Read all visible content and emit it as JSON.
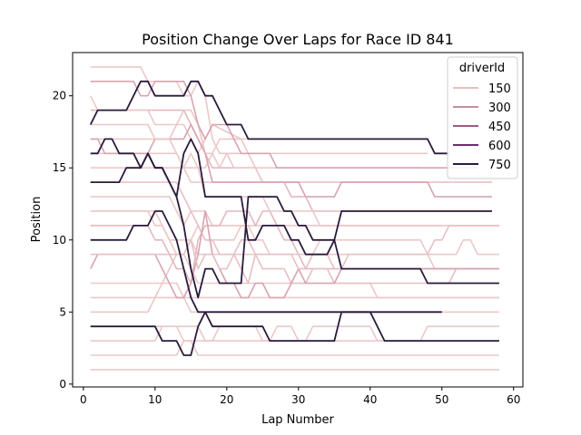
{
  "chart_data": {
    "type": "line",
    "title": "Position Change Over Laps for Race ID 841",
    "xlabel": "Lap Number",
    "ylabel": "Position",
    "xlim": [
      -1.5,
      61.3
    ],
    "ylim": [
      -0.2,
      23.0
    ],
    "xticks": [
      0,
      10,
      20,
      30,
      40,
      50,
      60
    ],
    "yticks": [
      0,
      5,
      10,
      15,
      20
    ],
    "grid": false,
    "legend": {
      "title": "driverId",
      "placement": "upper-right",
      "entries": [
        {
          "label": "150",
          "color": "#e8bfc1"
        },
        {
          "label": "300",
          "color": "#c48e9e"
        },
        {
          "label": "450",
          "color": "#9c5a89"
        },
        {
          "label": "600",
          "color": "#6a2e6f"
        },
        {
          "label": "750",
          "color": "#2b1b3c"
        }
      ]
    },
    "series": [
      {
        "color": "#ecc8c8",
        "x": [
          1,
          9,
          10,
          11,
          12,
          58
        ],
        "y": [
          1,
          1,
          1,
          1,
          1,
          1
        ]
      },
      {
        "color": "#ecc8c8",
        "x": [
          1,
          10,
          11,
          12,
          13,
          14,
          15,
          16,
          17,
          58
        ],
        "y": [
          2,
          2,
          2,
          2,
          2,
          3,
          3,
          2,
          2,
          2
        ]
      },
      {
        "color": "#ecc8c8",
        "x": [
          1,
          10,
          11,
          12,
          13,
          14,
          58
        ],
        "y": [
          3,
          3,
          4,
          4,
          4,
          3,
          3
        ]
      },
      {
        "color": "#ecc8c8",
        "x": [
          1,
          9,
          10,
          11,
          14,
          15,
          16,
          17,
          58
        ],
        "y": [
          5,
          5,
          6,
          6,
          6,
          5,
          5,
          5,
          5
        ]
      },
      {
        "color": "#ecc8c8",
        "x": [
          1,
          10,
          11,
          12,
          13,
          14,
          15,
          58
        ],
        "y": [
          6,
          6,
          7,
          7,
          7,
          6,
          6,
          6
        ]
      },
      {
        "color": "#ecc8c8",
        "x": [
          1,
          11,
          12,
          13,
          14,
          15,
          16,
          40,
          41,
          58
        ],
        "y": [
          7,
          7,
          8,
          9,
          9,
          8,
          7,
          7,
          6,
          6
        ]
      },
      {
        "color": "#ecc8c8",
        "x": [
          1,
          10,
          11,
          12,
          15,
          16,
          48,
          49,
          58
        ],
        "y": [
          12,
          12,
          11,
          10,
          10,
          9,
          9,
          8,
          8
        ]
      },
      {
        "color": "#ecc8c8",
        "x": [
          1,
          12,
          13,
          14,
          15,
          17,
          18,
          58
        ],
        "y": [
          13,
          13,
          12,
          11,
          12,
          12,
          11,
          11
        ]
      },
      {
        "color": "#ecc8c8",
        "x": [
          1,
          13,
          14,
          15,
          17,
          57
        ],
        "y": [
          16,
          16,
          15,
          14,
          14,
          14
        ]
      },
      {
        "color": "#e4b8bf",
        "x": [
          1,
          14,
          15,
          16,
          17,
          18,
          24,
          25,
          28,
          29,
          31,
          32,
          57
        ],
        "y": [
          19,
          19,
          18,
          17,
          16,
          15,
          15,
          14,
          14,
          13,
          13,
          12,
          12
        ]
      },
      {
        "color": "#ecc8c8",
        "x": [
          1,
          12,
          13,
          14,
          15,
          16,
          17,
          18,
          19,
          20,
          48
        ],
        "y": [
          17,
          17,
          18,
          19,
          19,
          18,
          16,
          16,
          17,
          17,
          17
        ]
      },
      {
        "color": "#ecc8c8",
        "x": [
          1,
          17,
          18,
          19,
          20,
          48
        ],
        "y": [
          15,
          15,
          16,
          15,
          16,
          16
        ]
      },
      {
        "color": "#ecc8c8",
        "x": [
          1,
          16,
          17,
          18,
          19,
          20,
          24,
          25,
          26,
          27,
          29,
          30,
          31,
          32,
          33,
          40,
          41,
          42,
          44,
          45,
          47,
          48,
          49,
          58
        ],
        "y": [
          4,
          4,
          3,
          3,
          4,
          4,
          4,
          3,
          3,
          4,
          4,
          3,
          3,
          4,
          4,
          4,
          3,
          3,
          3,
          3,
          3,
          4,
          4,
          4
        ]
      },
      {
        "color": "#e4b8bf",
        "x": [
          1,
          9,
          10,
          11,
          12,
          13,
          14,
          15,
          16,
          17,
          19,
          20,
          23,
          24,
          25,
          26,
          27,
          28,
          29,
          30,
          31,
          32,
          48,
          49,
          55
        ],
        "y": [
          11,
          11,
          10,
          10,
          9,
          8,
          8,
          7,
          10,
          11,
          11,
          12,
          12,
          11,
          12,
          12,
          11,
          10,
          10,
          9,
          8,
          8,
          8,
          8,
          8
        ]
      },
      {
        "color": "#ecc8c8",
        "x": [
          1,
          9,
          10,
          11,
          12,
          13,
          14,
          15,
          16,
          17,
          21,
          22,
          23,
          24,
          25,
          26,
          27,
          32,
          33,
          47,
          48,
          52,
          53,
          54,
          55,
          58
        ],
        "y": [
          12,
          12,
          11,
          11,
          10,
          9,
          9,
          10,
          11,
          10,
          10,
          11,
          11,
          10,
          10,
          9,
          9,
          9,
          10,
          10,
          9,
          9,
          10,
          10,
          9,
          9
        ]
      },
      {
        "color": "#e8c0c5",
        "x": [
          1,
          13,
          14,
          15,
          16,
          17,
          18,
          19,
          21,
          22,
          23,
          24,
          25,
          26,
          28,
          29,
          31,
          32,
          33,
          34,
          35,
          36,
          48,
          49,
          51,
          52,
          53,
          54,
          57
        ],
        "y": [
          14,
          14,
          13,
          12,
          11,
          10,
          10,
          9,
          9,
          10,
          10,
          9,
          8,
          8,
          8,
          7,
          7,
          8,
          8,
          8,
          7,
          7,
          7,
          7,
          7,
          8,
          8,
          8,
          8
        ]
      },
      {
        "color": "#d8a4b0",
        "x": [
          1,
          2,
          3,
          9,
          10,
          11,
          12,
          13,
          14,
          15,
          16,
          17,
          18,
          19,
          20,
          21,
          22,
          23,
          24,
          25,
          26,
          28,
          29,
          30,
          31,
          35,
          36,
          58
        ],
        "y": [
          8,
          9,
          9,
          9,
          9,
          8,
          7,
          6,
          6,
          7,
          9,
          12,
          9,
          8,
          7,
          7,
          6,
          6,
          7,
          7,
          6,
          6,
          7,
          8,
          7,
          7,
          8,
          8
        ]
      },
      {
        "color": "#e8c0c5",
        "x": [
          1,
          14,
          15,
          16,
          17,
          18,
          19,
          20,
          21,
          22,
          23,
          24,
          29,
          30,
          31,
          32,
          33,
          34,
          35,
          36,
          37,
          38,
          48,
          49,
          50,
          51,
          52,
          58
        ],
        "y": [
          9,
          9,
          10,
          8,
          9,
          9,
          8,
          8,
          9,
          8,
          7,
          9,
          9,
          8,
          8,
          9,
          9,
          9,
          8,
          8,
          9,
          9,
          9,
          10,
          10,
          11,
          11,
          11
        ]
      },
      {
        "color": "#ecc8c8",
        "x": [
          1,
          2,
          3,
          9,
          10,
          11,
          12,
          13,
          14,
          15,
          16,
          17,
          18,
          22,
          23,
          24,
          25,
          26,
          27,
          28,
          29,
          30,
          31,
          32,
          33,
          34,
          35,
          36,
          57
        ],
        "y": [
          20,
          19,
          19,
          19,
          18,
          18,
          18,
          18,
          18,
          17,
          16,
          17,
          18,
          17,
          16,
          15,
          14,
          14,
          14,
          14,
          14,
          14,
          14,
          14,
          14,
          14,
          14,
          14,
          14
        ]
      },
      {
        "color": "#ecc8c8",
        "x": [
          1,
          8,
          9,
          10,
          12,
          13,
          14,
          15,
          16,
          17,
          18,
          19,
          20,
          21,
          22,
          47
        ],
        "y": [
          22,
          22,
          21,
          21,
          21,
          21,
          20,
          20,
          21,
          20,
          17,
          16,
          16,
          15,
          15,
          15
        ]
      },
      {
        "color": "#d8a4b0",
        "x": [
          1,
          2,
          3,
          4,
          5,
          6,
          7,
          8,
          9,
          10,
          11,
          14,
          15,
          16,
          17,
          18,
          19,
          20,
          23,
          24,
          25,
          26,
          29,
          30,
          31,
          32,
          33,
          34,
          35,
          36,
          48,
          49,
          57
        ],
        "y": [
          17,
          17,
          16,
          16,
          16,
          16,
          16,
          16,
          16,
          17,
          17,
          17,
          18,
          17,
          16,
          14,
          14,
          14,
          14,
          14,
          14,
          14,
          14,
          14,
          13,
          13,
          13,
          13,
          13,
          14,
          14,
          13,
          13
        ]
      },
      {
        "color": "#d8a4b0",
        "x": [
          1,
          7,
          8,
          9,
          10,
          14,
          15,
          16,
          17,
          18,
          19,
          20,
          21,
          22,
          23,
          24,
          25,
          26,
          27,
          28,
          29,
          30,
          31,
          32,
          33,
          34,
          35,
          36,
          37,
          38,
          48,
          49,
          51,
          52,
          53,
          54,
          55
        ],
        "y": [
          21,
          21,
          20,
          20,
          21,
          21,
          20,
          18,
          17,
          18,
          18,
          18,
          17,
          16,
          16,
          16,
          16,
          16,
          15,
          15,
          15,
          15,
          15,
          15,
          15,
          15,
          15,
          15,
          15,
          15,
          15,
          15,
          15,
          15,
          15,
          15,
          15
        ]
      },
      {
        "color": "#ecc8c8",
        "x": [
          1,
          9,
          10,
          11,
          12,
          13,
          14,
          15,
          16,
          17,
          18,
          19,
          20,
          21,
          22,
          23,
          24,
          25,
          26,
          27,
          28,
          29,
          30,
          31,
          32,
          33,
          48,
          49,
          50
        ],
        "y": [
          18,
          18,
          17,
          17,
          17,
          16,
          15,
          16,
          15,
          13,
          13,
          13,
          13,
          13,
          13,
          13,
          13,
          13,
          12,
          12,
          12,
          12,
          12,
          12,
          12,
          11,
          11,
          11,
          11
        ]
      },
      {
        "color": "#2b1b3c",
        "x": [
          1,
          2,
          6,
          7,
          8,
          9,
          10,
          14,
          15,
          16,
          17,
          18,
          19,
          20,
          22,
          23,
          48,
          49,
          51
        ],
        "y": [
          18,
          19,
          19,
          20,
          21,
          21,
          20,
          20,
          21,
          21,
          20,
          20,
          19,
          18,
          18,
          17,
          17,
          16,
          16
        ]
      },
      {
        "color": "#2b1b3c",
        "x": [
          1,
          2,
          3,
          4,
          5,
          6,
          7,
          8,
          9,
          10,
          11,
          12,
          13,
          14,
          15,
          16,
          17,
          18,
          19,
          20,
          21,
          22,
          23,
          24,
          25,
          26,
          27,
          28,
          29,
          30,
          31,
          32,
          33,
          34,
          35,
          36,
          57
        ],
        "y": [
          16,
          16,
          17,
          17,
          16,
          16,
          16,
          15,
          16,
          15,
          15,
          14,
          13,
          11,
          8,
          6,
          8,
          8,
          7,
          7,
          7,
          7,
          13,
          13,
          13,
          13,
          13,
          12,
          12,
          11,
          11,
          10,
          10,
          10,
          10,
          12,
          12
        ]
      },
      {
        "color": "#2b1b3c",
        "x": [
          1,
          5,
          6,
          7,
          8,
          9,
          10,
          11,
          12,
          13,
          14,
          15,
          16,
          17,
          22,
          23,
          24,
          25,
          28,
          29,
          30,
          31,
          34,
          35,
          36,
          47,
          48,
          58
        ],
        "y": [
          14,
          14,
          15,
          15,
          15,
          16,
          15,
          15,
          14,
          13,
          16,
          17,
          16,
          13,
          13,
          10,
          10,
          11,
          11,
          10,
          10,
          9,
          9,
          10,
          8,
          8,
          7,
          7
        ]
      },
      {
        "color": "#2b1b3c",
        "x": [
          1,
          6,
          7,
          8,
          9,
          10,
          11,
          12,
          13,
          14,
          15,
          16,
          17,
          18,
          19,
          20,
          21,
          22,
          23,
          24,
          25,
          26,
          27,
          28,
          29,
          30,
          31,
          32,
          33,
          34,
          35,
          36,
          37,
          38,
          48,
          49,
          50
        ],
        "y": [
          10,
          10,
          11,
          11,
          11,
          12,
          12,
          11,
          10,
          8,
          6,
          5,
          5,
          5,
          5,
          5,
          5,
          5,
          5,
          5,
          5,
          5,
          5,
          5,
          5,
          5,
          5,
          5,
          5,
          5,
          5,
          5,
          5,
          5,
          5,
          5,
          5
        ]
      },
      {
        "color": "#2b1b3c",
        "x": [
          1,
          10,
          11,
          13,
          14,
          15,
          16,
          17,
          18,
          25,
          26,
          35,
          36,
          40,
          42,
          58
        ],
        "y": [
          4,
          4,
          3,
          3,
          2,
          2,
          4,
          5,
          4,
          4,
          3,
          3,
          5,
          5,
          3,
          3
        ]
      }
    ]
  }
}
